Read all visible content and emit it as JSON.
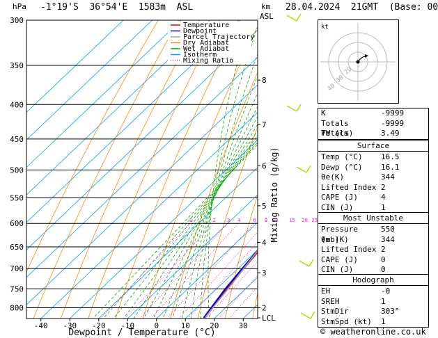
{
  "header": {
    "pressure_unit": "hPa",
    "location": "-1°19'S  36°54'E  1583m  ASL",
    "km_label": "km",
    "asl_label": "ASL",
    "datetime": "28.04.2024  21GMT  (Base: 00)"
  },
  "chart_data": {
    "type": "line",
    "title": "",
    "xlabel": "Dewpoint / Temperature (°C)",
    "ylabel": "hPa",
    "y_right_label": "Mixing Ratio (g/kg)",
    "x_ticks": [
      -40,
      -30,
      -20,
      -10,
      0,
      10,
      20,
      30
    ],
    "xlim": [
      -45,
      35
    ],
    "pressure_levels": [
      300,
      350,
      400,
      450,
      500,
      550,
      600,
      650,
      700,
      750,
      800
    ],
    "ylim": [
      830,
      300
    ],
    "y_scale": "log",
    "km_ticks": [
      {
        "label": "8",
        "p": 368
      },
      {
        "label": "7",
        "p": 428
      },
      {
        "label": "6",
        "p": 493
      },
      {
        "label": "5",
        "p": 565
      },
      {
        "label": "4",
        "p": 640
      },
      {
        "label": "3",
        "p": 710
      },
      {
        "label": "2",
        "p": 800
      },
      {
        "label": "LCL",
        "p": 828
      }
    ],
    "mixing_ratio_labels": [
      "1",
      "2",
      "3",
      "4",
      "6",
      "8",
      "10",
      "15",
      "20",
      "25"
    ],
    "legend": [
      "Temperature",
      "Dewpoint",
      "Parcel Trajectory",
      "Dry Adiabat",
      "Wet Adiabat",
      "Isotherm",
      "Mixing Ratio"
    ],
    "legend_placement": "top-left",
    "series": [
      {
        "name": "Temperature",
        "color": "#e00000",
        "points": [
          [
            16.5,
            828
          ],
          [
            15.5,
            800
          ],
          [
            13.5,
            750
          ],
          [
            12.0,
            700
          ],
          [
            10.5,
            650
          ],
          [
            8.0,
            600
          ],
          [
            5.0,
            550
          ],
          [
            1.0,
            500
          ],
          [
            -3.5,
            450
          ],
          [
            -8.0,
            400
          ],
          [
            -12.5,
            350
          ]
        ]
      },
      {
        "name": "Dewpoint",
        "color": "#0000cc",
        "points": [
          [
            16.1,
            828
          ],
          [
            15.0,
            800
          ],
          [
            13.0,
            750
          ],
          [
            11.5,
            700
          ],
          [
            10.0,
            650
          ],
          [
            7.5,
            600
          ],
          [
            4.5,
            550
          ],
          [
            0.5,
            500
          ],
          [
            -4.0,
            450
          ],
          [
            -8.5,
            400
          ],
          [
            -13.0,
            350
          ]
        ]
      },
      {
        "name": "Parcel Trajectory",
        "color": "#a0a0a0",
        "points": [
          [
            16.5,
            828
          ],
          [
            15.5,
            800
          ],
          [
            14.0,
            750
          ],
          [
            12.0,
            700
          ],
          [
            10.0,
            650
          ],
          [
            7.5,
            600
          ],
          [
            5.0,
            550
          ],
          [
            2.0,
            500
          ],
          [
            -2.0,
            450
          ],
          [
            -7.0,
            400
          ],
          [
            -13.0,
            350
          ],
          [
            -20.0,
            300
          ]
        ]
      }
    ],
    "wind_barbs_placement": "right of chart"
  },
  "colors": {
    "temperature": "#e00000",
    "dewpoint": "#0000cc",
    "parcel": "#a0a0a0",
    "dry_adiabat": "#ff8c00",
    "wet_adiabat": "#00aa00",
    "isotherm": "#00a0ff",
    "mixing_ratio": "#ff00ff",
    "wind_barb": "#b8d800"
  },
  "hodograph": {
    "unit_label": "kt",
    "ring_labels": [
      "40",
      "30",
      "20"
    ]
  },
  "indices": {
    "rows": [
      {
        "label": "K",
        "value": "-9999"
      },
      {
        "label": "Totals Totals",
        "value": "-9999"
      },
      {
        "label": "PW (cm)",
        "value": "3.49"
      }
    ]
  },
  "surface": {
    "title": "Surface",
    "rows": [
      {
        "label": "Temp (°C)",
        "value": "16.5"
      },
      {
        "label": "Dewp (°C)",
        "value": "16.1"
      },
      {
        "label": "θe(K)",
        "value": "344"
      },
      {
        "label": "Lifted Index",
        "value": "2"
      },
      {
        "label": "CAPE (J)",
        "value": "4"
      },
      {
        "label": "CIN (J)",
        "value": "1"
      }
    ]
  },
  "most_unstable": {
    "title": "Most Unstable",
    "rows": [
      {
        "label": "Pressure (mb)",
        "value": "550"
      },
      {
        "label": "θe (K)",
        "value": "344"
      },
      {
        "label": "Lifted Index",
        "value": "2"
      },
      {
        "label": "CAPE (J)",
        "value": "0"
      },
      {
        "label": "CIN (J)",
        "value": "0"
      }
    ]
  },
  "hodograph_table": {
    "title": "Hodograph",
    "rows": [
      {
        "label": "EH",
        "value": "-0"
      },
      {
        "label": "SREH",
        "value": "1"
      },
      {
        "label": "StmDir",
        "value": "303°"
      },
      {
        "label": "StmSpd (kt)",
        "value": "1"
      }
    ]
  },
  "footer": {
    "copyright": "© weatheronline.co.uk"
  }
}
